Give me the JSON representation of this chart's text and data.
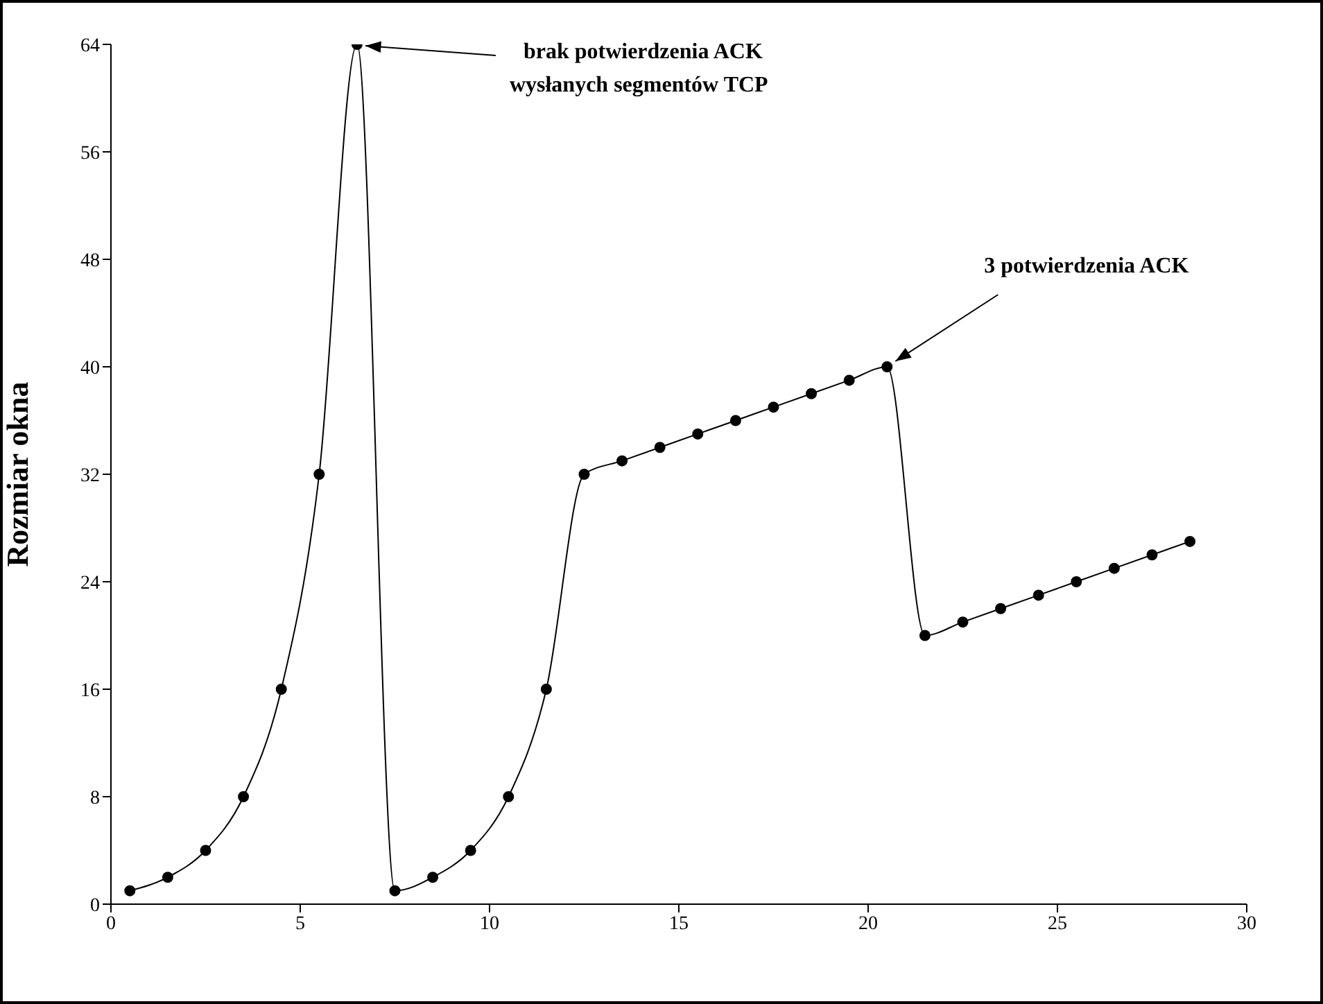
{
  "chart_data": {
    "type": "line",
    "ylabel": "Rozmiar okna",
    "x": [
      0.5,
      1.5,
      2.5,
      3.5,
      4.5,
      5.5,
      6.5,
      7.5,
      8.5,
      9.5,
      10.5,
      11.5,
      12.5,
      13.5,
      14.5,
      15.5,
      16.5,
      17.5,
      18.5,
      19.5,
      20.5,
      21.5,
      22.5,
      23.5,
      24.5,
      25.5,
      26.5,
      27.5,
      28.5
    ],
    "series": [
      {
        "color": "#000000",
        "values": [
          1,
          2,
          4,
          8,
          16,
          32,
          64,
          1,
          2,
          4,
          8,
          16,
          32,
          33,
          34,
          35,
          36,
          37,
          38,
          39,
          40,
          20,
          21,
          22,
          23,
          24,
          25,
          26,
          27
        ]
      }
    ],
    "xlim": [
      0,
      30
    ],
    "xticks": [
      0,
      5,
      10,
      15,
      20,
      25,
      30
    ],
    "ylim": [
      0,
      64
    ],
    "yticks": [
      0,
      8,
      16,
      24,
      32,
      40,
      48,
      56,
      64
    ],
    "marker": "circle",
    "line_style": "solid",
    "grid": false,
    "legend": false,
    "annotations": [
      {
        "text": "brak potwierdzenia ACK\nwysłanych segmentów TCP",
        "x": 6.5,
        "y": 64
      },
      {
        "text": "3  potwierdzenia ACK",
        "x": 20.5,
        "y": 40
      }
    ]
  }
}
